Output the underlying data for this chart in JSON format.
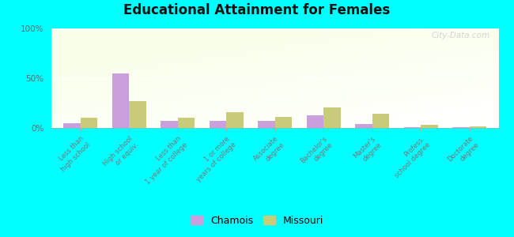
{
  "title": "Educational Attainment for Females",
  "categories": [
    "Less than\nhigh school",
    "High school\nor equiv.",
    "Less than\n1 year of college",
    "1 or more\nyears of college",
    "Associate\ndegree",
    "Bachelor's\ndegree",
    "Master's\ndegree",
    "Profess.\nschool degree",
    "Doctorate\ndegree"
  ],
  "chamois": [
    5.0,
    55.0,
    7.0,
    7.0,
    7.0,
    13.0,
    4.0,
    0.5,
    0.5
  ],
  "missouri": [
    10.0,
    27.0,
    10.0,
    16.0,
    11.0,
    21.0,
    14.0,
    3.0,
    1.5
  ],
  "chamois_color": "#c9a0dc",
  "missouri_color": "#c8cc7a",
  "bg_top": "#f5f5f0",
  "bg_bottom_left": "#d8edcc",
  "outer_background": "#00ffff",
  "yticks": [
    0,
    50,
    100
  ],
  "ytick_labels": [
    "0%",
    "50%",
    "100%"
  ],
  "watermark": "City-Data.com",
  "bar_width": 0.35,
  "ylim": [
    0,
    100
  ]
}
